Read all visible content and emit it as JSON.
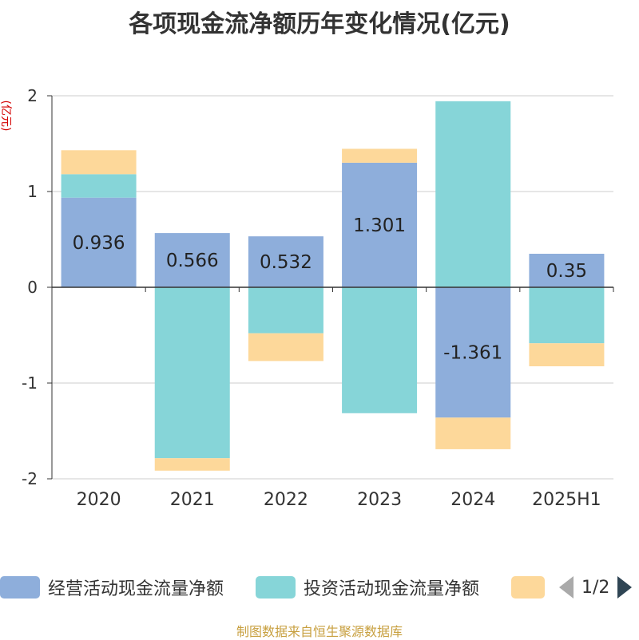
{
  "title": "各项现金流净额历年变化情况(亿元)",
  "unit_label": "(亿元)",
  "source": "制图数据来自恒生聚源数据库",
  "legend": {
    "items": [
      {
        "label": "经营活动现金流量净额",
        "color": "#8eaedb"
      },
      {
        "label": "投资活动现金流量净额",
        "color": "#86d5d8"
      },
      {
        "label": "",
        "color": "#fdd89a"
      }
    ],
    "page": "1/2"
  },
  "chart_data": {
    "type": "bar",
    "stacked": true,
    "categories": [
      "2020",
      "2021",
      "2022",
      "2023",
      "2024",
      "2025H1"
    ],
    "ylim": [
      -2,
      2
    ],
    "yticks": [
      2,
      1,
      0,
      -1,
      -2
    ],
    "grid": true,
    "legend_position": "bottom",
    "series": [
      {
        "name": "经营活动现金流量净额",
        "color": "#8eaedb",
        "values": [
          0.936,
          0.566,
          0.532,
          1.301,
          -1.361,
          0.35
        ],
        "labels": [
          "0.936",
          "0.566",
          "0.532",
          "1.301",
          "-1.361",
          "0.35"
        ]
      },
      {
        "name": "投资活动现金流量净额",
        "color": "#86d5d8",
        "values": [
          0.245,
          -1.785,
          -0.48,
          -1.315,
          1.943,
          -0.585
        ]
      },
      {
        "color": "#fdd89a",
        "values": [
          0.25,
          -0.13,
          -0.29,
          0.145,
          -0.33,
          -0.24
        ]
      }
    ]
  }
}
